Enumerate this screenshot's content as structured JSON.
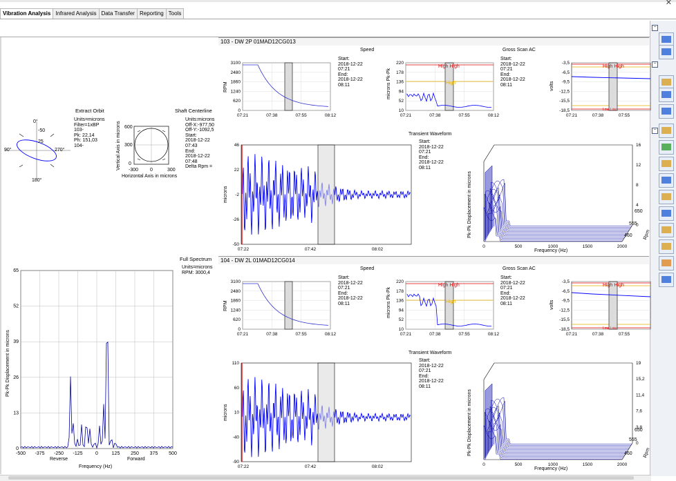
{
  "tabs": [
    "Vibration Analysis",
    "Infrared Analysis",
    "Data Transfer",
    "Reporting",
    "Tools"
  ],
  "window_close": "✕",
  "orbit": {
    "title": "Extract Orbit",
    "info": "Units=microns\nFilter=1xBP\n103-\nPk: 22,14\nPh: 151,03\n104-",
    "angles": [
      "0°",
      "90°",
      "270°",
      "180°"
    ],
    "ticks": [
      "-50",
      "25"
    ]
  },
  "centerline": {
    "title": "Shaft Centerline",
    "info": "Units:microns\nOff-X:-977,50\nOff-Y:-1092,5\nStart:\n2018-12-22\n07:43\nEnd:\n2018-12-22\n07:48\nDelta Rpm =",
    "ylabel": "Vertical Axis in microns",
    "xlabel": "Horizontal Axis in microns",
    "yticks": [
      "600",
      "300",
      "0"
    ],
    "xticks": [
      "-300",
      "0",
      "300"
    ]
  },
  "full_spectrum": {
    "title": "Full Spectrum",
    "info": "Units=microns\nRPM: 3000,4",
    "ylabel": "Pk-Pk Displacement in microns",
    "xlabel": "Frequency (Hz)",
    "reverse": "Reverse",
    "forward": "Forward",
    "yticks": [
      "65",
      "52",
      "39",
      "26",
      "13",
      "0"
    ],
    "xticks": [
      "-500",
      "-375",
      "-250",
      "-125",
      "0",
      "125",
      "250",
      "375",
      "500"
    ]
  },
  "groups": [
    {
      "header": "103 - DW  2P  01MAD12CG013",
      "speed": {
        "title": "Speed",
        "ylabel": "RPM",
        "yticks": [
          "3100",
          "2480",
          "1860",
          "1240",
          "620",
          "0"
        ],
        "xticks": [
          "07:21",
          "07:38",
          "07:55",
          "08:12"
        ]
      },
      "gross_ylabel": "microns Pk-Pk",
      "gross_yticks": [
        "220",
        "178",
        "136",
        "94",
        "52",
        "10"
      ],
      "gross_xticks": [
        "07:21",
        "07:38",
        "07:55",
        "08:12"
      ],
      "gross_title": "Gross Scan AC",
      "volts": {
        "ylabel": "volts",
        "yticks": [
          "-3,5",
          "-6,5",
          "-9,5",
          "-12,5",
          "-15,5",
          "-18,5"
        ],
        "xticks": [
          "07:21",
          "07:38",
          "07:55",
          "08:12"
        ]
      },
      "transient": {
        "title": "Transient Waveform",
        "ylabel": "microns",
        "yticks": [
          "46",
          "22",
          "-2",
          "-26",
          "-50"
        ],
        "xticks": [
          "07:22",
          "07:42",
          "08:02"
        ]
      },
      "waterfall": {
        "ylabel": "Pk-Pk Displacement in microns",
        "xlabel": "Frequency (Hz)",
        "rlabel": "Rpm",
        "xticks": [
          "0",
          "500",
          "1000",
          "1500",
          "2000"
        ],
        "zticks": [
          "16",
          "12",
          "8",
          "4",
          "0"
        ],
        "rticks": [
          "650",
          "555",
          "460"
        ]
      },
      "info_speed": "Start:\n2018-12-22\n07:21\nEnd:\n2018-12-22\n08:11",
      "info_gross": "Start:\n2018-12-22\n07:21\nEnd:\n2018-12-22\n08:11",
      "info_trans": "Start:\n2018-12-22\n07:21\nEnd:\n2018-12-22\n08:11",
      "highhigh": "High High",
      "high": "High",
      "lowlow": "Low Low"
    },
    {
      "header": "104 - DW  2L  01MAD12CG014",
      "speed": {
        "title": "Speed",
        "ylabel": "RPM",
        "yticks": [
          "3100",
          "2480",
          "1860",
          "1240",
          "620",
          "0"
        ],
        "xticks": [
          "07:21",
          "07:38",
          "07:55",
          "08:12"
        ]
      },
      "gross_ylabel": "microns Pk-Pk",
      "gross_yticks": [
        "220",
        "178",
        "136",
        "94",
        "52",
        "10"
      ],
      "gross_xticks": [
        "07:21",
        "07:38",
        "07:55",
        "08:12"
      ],
      "gross_title": "Gross Scan AC",
      "volts": {
        "ylabel": "volts",
        "yticks": [
          "-3,5",
          "-6,5",
          "-9,5",
          "-12,5",
          "-15,5",
          "-18,5"
        ],
        "xticks": [
          "07:21",
          "07:38",
          "07:55",
          "08:12"
        ]
      },
      "transient": {
        "title": "Transient Waveform",
        "ylabel": "microns",
        "yticks": [
          "110",
          "60",
          "10",
          "-40",
          "-90"
        ],
        "xticks": [
          "07:22",
          "07:42",
          "08:02"
        ]
      },
      "waterfall": {
        "ylabel": "Pk-Pk Displacement in microns",
        "xlabel": "Frequency (Hz)",
        "rlabel": "Rpm",
        "xticks": [
          "0",
          "500",
          "1000",
          "1500",
          "2000"
        ],
        "zticks": [
          "19",
          "15,2",
          "11,4",
          "7,6",
          "3,8",
          "0"
        ],
        "rticks": [
          "650",
          "555",
          "460"
        ]
      },
      "info_speed": "Start:\n2018-12-22\n07:21\nEnd:\n2018-12-22\n08:11",
      "info_gross": "Start:\n2018-12-22\n07:21\nEnd:\n2018-12-22\n08:11",
      "info_trans": "Start:\n2018-12-22\n07:21\nEnd:\n2018-12-22\n08:11",
      "highhigh": "High High",
      "high": "High",
      "lowlow": "Low Low"
    }
  ],
  "sidebar_icons": [
    "fit-width-icon",
    "cursor-icon",
    "trend-icon",
    "spectrum-icon",
    "waveform-icon",
    "multi-trend-icon",
    "color-map-icon",
    "orbit-icon",
    "orbit-filter-icon",
    "phase-icon",
    "bode-icon",
    "polar-icon",
    "centerline-icon",
    "cascade-icon",
    "waterfall-icon"
  ],
  "colors": {
    "trace": "#0000ff",
    "alarm_high_high": "#e00000",
    "alarm_high": "#e8b000",
    "window": "#dcdcdc"
  }
}
